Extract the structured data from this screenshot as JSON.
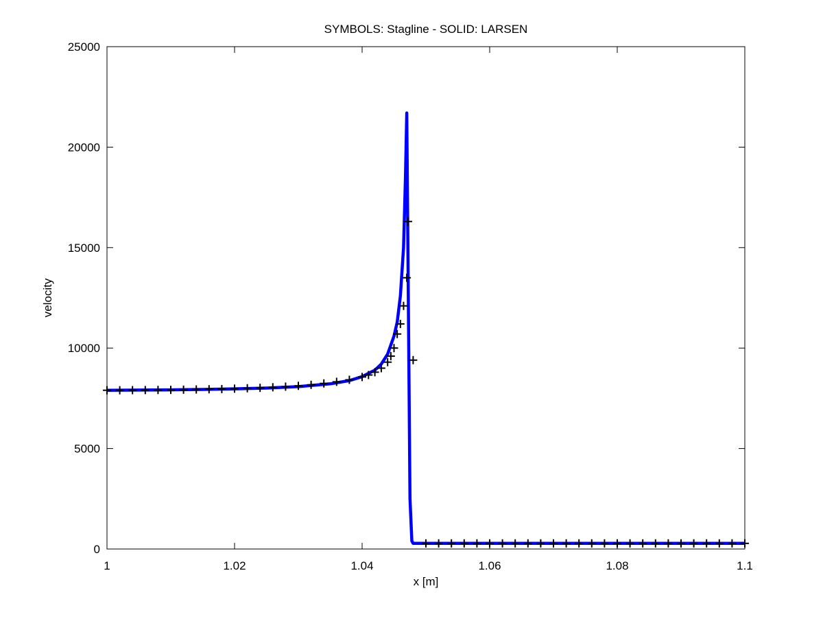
{
  "chart_data": {
    "type": "line",
    "title": "SYMBOLS: Stagline - SOLID: LARSEN",
    "xlabel": "x [m]",
    "ylabel": "velocity",
    "xlim": [
      1.0,
      1.1
    ],
    "ylim": [
      0,
      25000
    ],
    "x_ticks": [
      "1",
      "1.02",
      "1.04",
      "1.06",
      "1.08",
      "1.1"
    ],
    "y_ticks": [
      "0",
      "5000",
      "10000",
      "15000",
      "20000",
      "25000"
    ],
    "grid": false,
    "legend": "none",
    "series": [
      {
        "style": "solid",
        "color": "#0000ff",
        "x": [
          1.0,
          1.005,
          1.01,
          1.015,
          1.02,
          1.025,
          1.03,
          1.035,
          1.038,
          1.04,
          1.042,
          1.043,
          1.044,
          1.045,
          1.0455,
          1.046,
          1.0465,
          1.0468,
          1.047,
          1.0472,
          1.0475,
          1.0478,
          1.048,
          1.05,
          1.06,
          1.07,
          1.08,
          1.09,
          1.1
        ],
        "y": [
          7900,
          7910,
          7920,
          7940,
          7970,
          8010,
          8080,
          8220,
          8380,
          8580,
          8900,
          9200,
          9700,
          10600,
          11300,
          12600,
          15000,
          18500,
          21700,
          14000,
          2500,
          400,
          280,
          280,
          280,
          280,
          280,
          280,
          280
        ]
      },
      {
        "style": "markers",
        "marker": "+",
        "color": "#000000",
        "x": [
          1.0,
          1.002,
          1.004,
          1.006,
          1.008,
          1.01,
          1.012,
          1.014,
          1.016,
          1.018,
          1.02,
          1.022,
          1.024,
          1.026,
          1.028,
          1.03,
          1.032,
          1.034,
          1.036,
          1.038,
          1.04,
          1.041,
          1.042,
          1.043,
          1.044,
          1.0445,
          1.045,
          1.0455,
          1.046,
          1.0465,
          1.047,
          1.0472,
          1.048,
          1.05,
          1.052,
          1.054,
          1.056,
          1.058,
          1.06,
          1.062,
          1.064,
          1.066,
          1.068,
          1.07,
          1.072,
          1.074,
          1.076,
          1.078,
          1.08,
          1.082,
          1.084,
          1.086,
          1.088,
          1.09,
          1.092,
          1.094,
          1.096,
          1.098,
          1.1
        ],
        "y": [
          7900,
          7900,
          7905,
          7910,
          7915,
          7920,
          7930,
          7940,
          7950,
          7960,
          7980,
          8000,
          8020,
          8050,
          8080,
          8120,
          8170,
          8240,
          8320,
          8420,
          8560,
          8660,
          8800,
          9000,
          9300,
          9600,
          10000,
          10700,
          11200,
          12100,
          13500,
          16300,
          9400,
          280,
          280,
          280,
          280,
          280,
          280,
          280,
          280,
          280,
          280,
          280,
          280,
          280,
          280,
          280,
          280,
          280,
          280,
          280,
          280,
          280,
          280,
          280,
          280,
          280,
          280
        ]
      }
    ]
  }
}
